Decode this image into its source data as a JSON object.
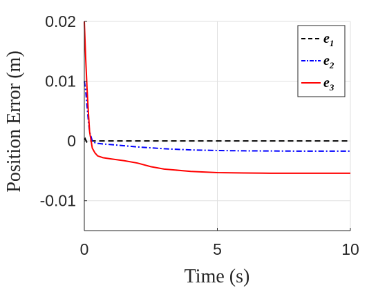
{
  "chart_data": {
    "type": "line",
    "title": "",
    "xlabel": "Time (s)",
    "ylabel": "Position Error (m)",
    "xlim": [
      0,
      10
    ],
    "ylim": [
      -0.015,
      0.02
    ],
    "xticks": [
      0,
      5,
      10
    ],
    "xtick_labels": [
      "0",
      "5",
      "10"
    ],
    "yticks": [
      -0.01,
      0,
      0.01,
      0.02
    ],
    "ytick_labels": [
      "-0.01",
      "0",
      "0.01",
      "0.02"
    ],
    "grid": true,
    "legend_position": "top-right",
    "series": [
      {
        "name": "e",
        "subscript": "1",
        "color": "#000000",
        "dash": "dashed",
        "x": [
          0,
          0.03,
          0.06,
          0.1,
          0.15,
          0.2,
          0.3,
          0.5,
          1,
          2,
          5,
          10
        ],
        "y": [
          0.0002,
          0.0004,
          0.0001,
          -0.0002,
          -0.0001,
          0,
          0,
          0,
          0,
          0,
          0,
          0
        ]
      },
      {
        "name": "e",
        "subscript": "2",
        "color": "#0000ff",
        "dash": "dashdot",
        "x": [
          0,
          0.05,
          0.1,
          0.15,
          0.2,
          0.3,
          0.4,
          0.5,
          0.7,
          1,
          1.5,
          2,
          3,
          4,
          5,
          6,
          8,
          10
        ],
        "y": [
          0.01,
          0.0085,
          0.006,
          0.0035,
          0.0015,
          0,
          -0.0003,
          -0.0004,
          -0.0005,
          -0.0006,
          -0.0008,
          -0.001,
          -0.0013,
          -0.0015,
          -0.0016,
          -0.00165,
          -0.0017,
          -0.0017
        ]
      },
      {
        "name": "e",
        "subscript": "3",
        "color": "#ff0000",
        "dash": "solid",
        "x": [
          0,
          0.05,
          0.1,
          0.15,
          0.2,
          0.3,
          0.4,
          0.5,
          0.7,
          1,
          1.5,
          2,
          2.5,
          3,
          4,
          5,
          6,
          7,
          8,
          10
        ],
        "y": [
          0.02,
          0.014,
          0.009,
          0.005,
          0.0015,
          -0.0012,
          -0.002,
          -0.0025,
          -0.0028,
          -0.003,
          -0.0033,
          -0.0037,
          -0.0043,
          -0.0047,
          -0.0051,
          -0.0053,
          -0.00535,
          -0.0054,
          -0.0054,
          -0.0054
        ]
      }
    ]
  }
}
